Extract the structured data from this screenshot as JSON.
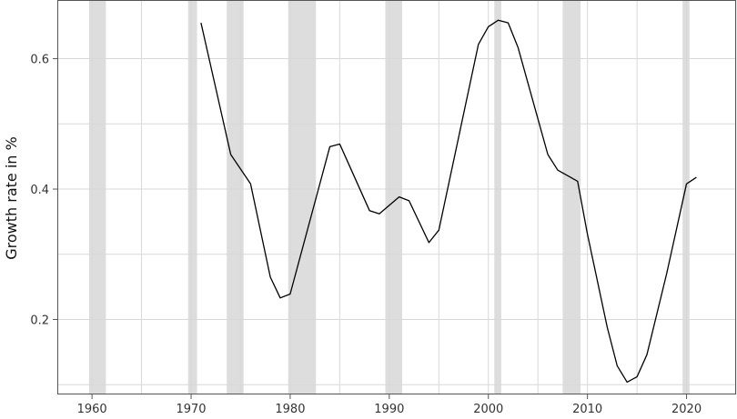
{
  "chart_data": {
    "type": "line",
    "title": "",
    "xlabel": "",
    "ylabel": "Growth rate in %",
    "xlim": [
      1956.5,
      2025
    ],
    "ylim": [
      0.085,
      0.69
    ],
    "xticks": [
      1960,
      1970,
      1980,
      1990,
      2000,
      2010,
      2020
    ],
    "yticks": [
      0.2,
      0.4,
      0.6
    ],
    "grid": true,
    "legend": "none",
    "recession_bands": [
      [
        1959.7,
        1961.4
      ],
      [
        1969.7,
        1970.6
      ],
      [
        1973.6,
        1975.3
      ],
      [
        1979.8,
        1982.6
      ],
      [
        1989.6,
        1991.3
      ],
      [
        2000.6,
        2001.3
      ],
      [
        2007.5,
        2009.3
      ],
      [
        2019.6,
        2020.3
      ]
    ],
    "series": [
      {
        "x": [
          1971,
          1974,
          1976,
          1978,
          1979,
          1980,
          1982,
          1984,
          1985,
          1988,
          1989,
          1991,
          1992,
          1994,
          1995,
          1999,
          2000,
          2001,
          2002,
          2003,
          2006,
          2007,
          2009,
          2010,
          2012,
          2013,
          2014,
          2015,
          2016,
          2018,
          2020,
          2021
        ],
        "y": [
          0.655,
          0.453,
          0.408,
          0.265,
          0.233,
          0.239,
          0.352,
          0.465,
          0.469,
          0.367,
          0.362,
          0.388,
          0.382,
          0.318,
          0.337,
          0.622,
          0.649,
          0.659,
          0.655,
          0.617,
          0.453,
          0.429,
          0.412,
          0.331,
          0.188,
          0.129,
          0.104,
          0.112,
          0.146,
          0.271,
          0.408,
          0.418
        ]
      }
    ],
    "colors": {
      "line": "#000000",
      "band": "#dddddd",
      "grid": "#d8d8d8",
      "axis": "#555555"
    }
  }
}
